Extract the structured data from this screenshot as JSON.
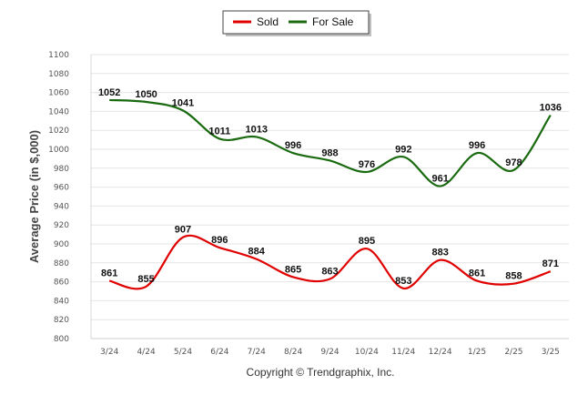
{
  "chart_data": {
    "type": "line",
    "ylabel": "Average Price (in $,000)",
    "xlabel": "",
    "credit": "Copyright © Trendgraphix, Inc.",
    "categories": [
      "3/24",
      "4/24",
      "5/24",
      "6/24",
      "7/24",
      "8/24",
      "9/24",
      "10/24",
      "11/24",
      "12/24",
      "1/25",
      "2/25",
      "3/25"
    ],
    "ylim": [
      800,
      1100
    ],
    "ystep": 20,
    "grid": true,
    "legend_position": "top-center",
    "series": [
      {
        "name": "Sold",
        "color": "#e00000",
        "values": [
          861,
          855,
          907,
          896,
          884,
          865,
          863,
          895,
          853,
          883,
          861,
          858,
          871
        ],
        "labels": [
          "861",
          "855",
          "907",
          "896",
          "884",
          "865",
          "863",
          "895",
          "853",
          "883",
          "861",
          "858",
          "871"
        ]
      },
      {
        "name": "For Sale",
        "color": "#1a6a10",
        "values": [
          1052,
          1050,
          1041,
          1011,
          1013,
          996,
          988,
          976,
          992,
          961,
          996,
          978,
          1036
        ],
        "labels": [
          "1052",
          "1050",
          "1041",
          "1011",
          "1013",
          "996",
          "988",
          "976",
          "992",
          "961",
          "996",
          "978",
          "1036"
        ]
      }
    ]
  }
}
